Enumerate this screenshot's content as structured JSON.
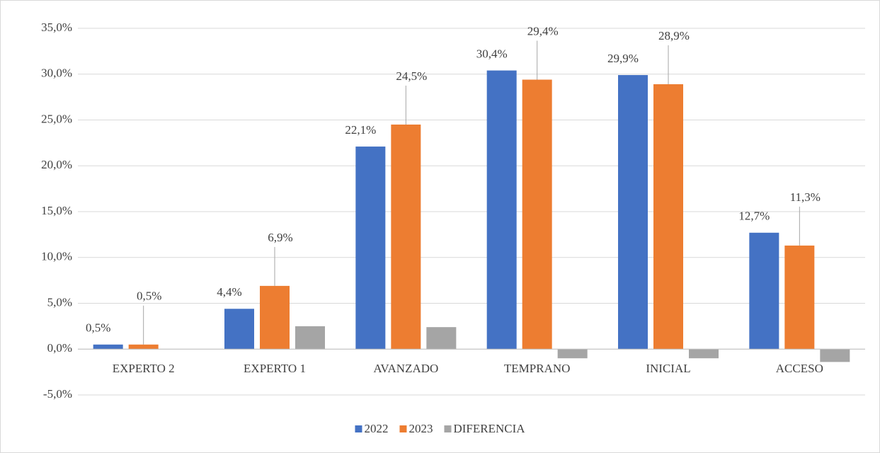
{
  "chart_data": {
    "type": "bar",
    "categories": [
      "EXPERTO 2",
      "EXPERTO 1",
      "AVANZADO",
      "TEMPRANO",
      "INICIAL",
      "ACCESO"
    ],
    "series": [
      {
        "name": "2022",
        "color": "#4472c4",
        "values": [
          0.5,
          4.4,
          22.1,
          30.4,
          29.9,
          12.7
        ],
        "value_labels": [
          "0,5%",
          "4,4%",
          "22,1%",
          "30,4%",
          "29,9%",
          "12,7%"
        ]
      },
      {
        "name": "2023",
        "color": "#ed7d31",
        "values": [
          0.5,
          6.9,
          24.5,
          29.4,
          28.9,
          11.3
        ],
        "value_labels": [
          "0,5%",
          "6,9%",
          "24,5%",
          "29,4%",
          "28,9%",
          "11,3%"
        ]
      },
      {
        "name": "DIFERENCIA",
        "color": "#a5a5a5",
        "values": [
          0.0,
          2.5,
          2.4,
          -1.0,
          -1.0,
          -1.4
        ]
      }
    ],
    "ylim": [
      -5,
      35
    ],
    "yticks": [
      {
        "value": -5,
        "label": "-5,0%"
      },
      {
        "value": 0,
        "label": "0,0%"
      },
      {
        "value": 5,
        "label": "5,0%"
      },
      {
        "value": 10,
        "label": "10,0%"
      },
      {
        "value": 15,
        "label": "15,0%"
      },
      {
        "value": 20,
        "label": "20,0%"
      },
      {
        "value": 25,
        "label": "25,0%"
      },
      {
        "value": 30,
        "label": "30,0%"
      },
      {
        "value": 35,
        "label": "35,0%"
      }
    ],
    "grid": true,
    "legend": "bottom"
  }
}
